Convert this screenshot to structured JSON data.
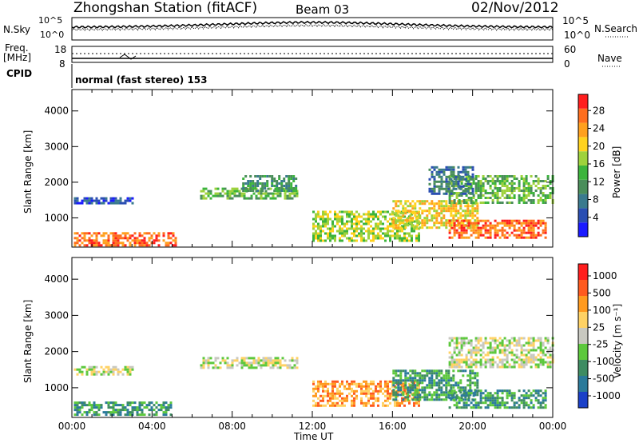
{
  "header": {
    "station": "Zhongshan Station (fitACF)",
    "beam": "Beam 03",
    "date": "02/Nov/2012"
  },
  "aux_panels": {
    "nsky_label": "N.Sky",
    "nsky_ticks": [
      "10^5",
      "10^0"
    ],
    "nsearch_label": "N.Search",
    "nsearch_ticks": [
      "10^5",
      "10^0"
    ],
    "freq_label_top": "Freq.",
    "freq_label_unit": "[MHz]",
    "freq_ticks": [
      "18",
      "8"
    ],
    "nave_label": "Nave",
    "nave_ticks": [
      "60",
      "0"
    ],
    "cpid_label": "CPID",
    "cpid_text": "normal (fast stereo) 153"
  },
  "chart_data": [
    {
      "type": "heatmap",
      "name": "power-panel",
      "ylabel": "Slant Range [km]",
      "xlabel": "",
      "y_ticks": [
        "1000",
        "2000",
        "3000",
        "4000"
      ],
      "ylim": [
        180,
        4600
      ],
      "xlim": [
        0,
        24
      ],
      "colorbar": {
        "label": "Power [dB]",
        "ticks": [
          "4",
          "8",
          "12",
          "16",
          "20",
          "24",
          "28"
        ],
        "colors": [
          "#1a1aff",
          "#2a4eb2",
          "#3a7a8e",
          "#4a8e5a",
          "#3cb43c",
          "#9ed23c",
          "#ffd21e",
          "#ffa01e",
          "#ff6e1e",
          "#ff1e1e"
        ]
      },
      "regions": [
        {
          "t0": 0.1,
          "t1": 5.2,
          "r0": 260,
          "r1": 600,
          "level": 8
        },
        {
          "t0": 0.1,
          "t1": 3.0,
          "r0": 1380,
          "r1": 1580,
          "level": 1
        },
        {
          "t0": 6.4,
          "t1": 11.3,
          "r0": 1550,
          "r1": 1850,
          "level": 4
        },
        {
          "t0": 8.5,
          "t1": 11.2,
          "r0": 1780,
          "r1": 2200,
          "level": 3
        },
        {
          "t0": 12.0,
          "t1": 17.3,
          "r0": 380,
          "r1": 1200,
          "level": 5
        },
        {
          "t0": 16.0,
          "t1": 20.3,
          "r0": 700,
          "r1": 1500,
          "level": 6
        },
        {
          "t0": 18.8,
          "t1": 23.7,
          "r0": 450,
          "r1": 950,
          "level": 8
        },
        {
          "t0": 18.8,
          "t1": 24.0,
          "r0": 1450,
          "r1": 2200,
          "level": 4
        },
        {
          "t0": 17.8,
          "t1": 20.0,
          "r0": 1700,
          "r1": 2450,
          "level": 2
        }
      ]
    },
    {
      "type": "heatmap",
      "name": "velocity-panel",
      "ylabel": "Slant Range [km]",
      "xlabel": "Time UT",
      "y_ticks": [
        "1000",
        "2000",
        "3000",
        "4000"
      ],
      "x_ticks": [
        "00:00",
        "04:00",
        "08:00",
        "12:00",
        "16:00",
        "20:00",
        "00:00"
      ],
      "ylim": [
        180,
        4600
      ],
      "xlim": [
        0,
        24
      ],
      "colorbar": {
        "label": "Velocity [m s⁻¹]",
        "ticks": [
          "1000",
          "500",
          "100",
          "25",
          "-25",
          "-100",
          "-500",
          "-1000"
        ],
        "colors": [
          "#1a40c8",
          "#2a7a9a",
          "#3e8c62",
          "#5cc83c",
          "#c8c8c0",
          "#ffd264",
          "#ff9a1e",
          "#ff5a1e",
          "#ff1e1e"
        ]
      },
      "regions": [
        {
          "t0": 0.1,
          "t1": 5.0,
          "r0": 280,
          "r1": 620,
          "level": 2
        },
        {
          "t0": 0.1,
          "t1": 3.0,
          "r0": 1380,
          "r1": 1600,
          "level": 4
        },
        {
          "t0": 6.4,
          "t1": 11.3,
          "r0": 1550,
          "r1": 1850,
          "level": 4
        },
        {
          "t0": 12.0,
          "t1": 17.3,
          "r0": 500,
          "r1": 1200,
          "level": 6
        },
        {
          "t0": 16.0,
          "t1": 20.3,
          "r0": 700,
          "r1": 1500,
          "level": 2
        },
        {
          "t0": 18.8,
          "t1": 23.7,
          "r0": 430,
          "r1": 950,
          "level": 2
        },
        {
          "t0": 18.8,
          "t1": 24.0,
          "r0": 1550,
          "r1": 2400,
          "level": 4
        }
      ]
    }
  ],
  "colors": {
    "background": "#ffffff",
    "axes": "#000000"
  }
}
